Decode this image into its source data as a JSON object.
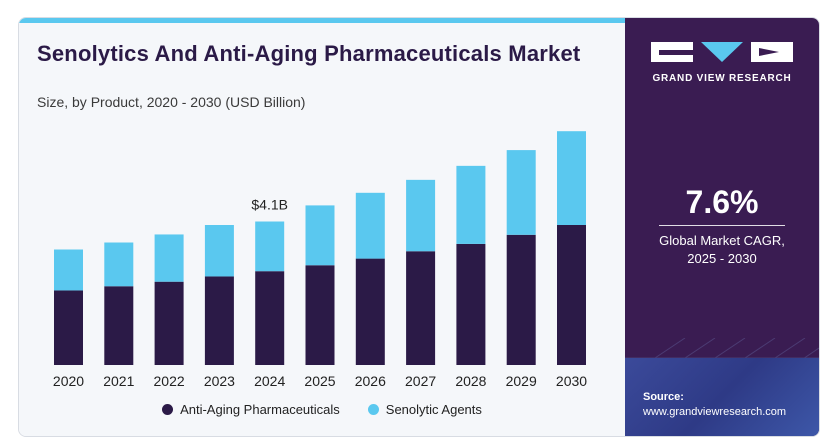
{
  "header": {
    "title": "Senolytics And Anti-Aging Pharmaceuticals Market",
    "subtitle": "Size, by Product, 2020 - 2030 (USD Billion)"
  },
  "sidebar": {
    "brand": "GRAND VIEW RESEARCH",
    "cagr_value": "7.6%",
    "cagr_label_line1": "Global Market CAGR,",
    "cagr_label_line2": "2025 - 2030",
    "source_label": "Source:",
    "source_url": "www.grandviewresearch.com"
  },
  "colors": {
    "anti_aging": "#2b1a47",
    "senolytic": "#5ac8ef",
    "panel": "#3a1c52"
  },
  "chart_data": {
    "type": "bar",
    "stacked": true,
    "categories": [
      "2020",
      "2021",
      "2022",
      "2023",
      "2024",
      "2025",
      "2026",
      "2027",
      "2028",
      "2029",
      "2030"
    ],
    "series": [
      {
        "name": "Anti-Aging Pharmaceuticals",
        "values": [
          2.13,
          2.25,
          2.38,
          2.53,
          2.68,
          2.85,
          3.04,
          3.25,
          3.46,
          3.72,
          4.0
        ]
      },
      {
        "name": "Senolytic Agents",
        "values": [
          1.17,
          1.25,
          1.35,
          1.47,
          1.42,
          1.71,
          1.88,
          2.04,
          2.23,
          2.42,
          2.68
        ]
      }
    ],
    "annotation": {
      "category": "2024",
      "label": "$4.1B"
    },
    "ylim": [
      0,
      7.2
    ],
    "grid": false,
    "legend": "bottom"
  }
}
